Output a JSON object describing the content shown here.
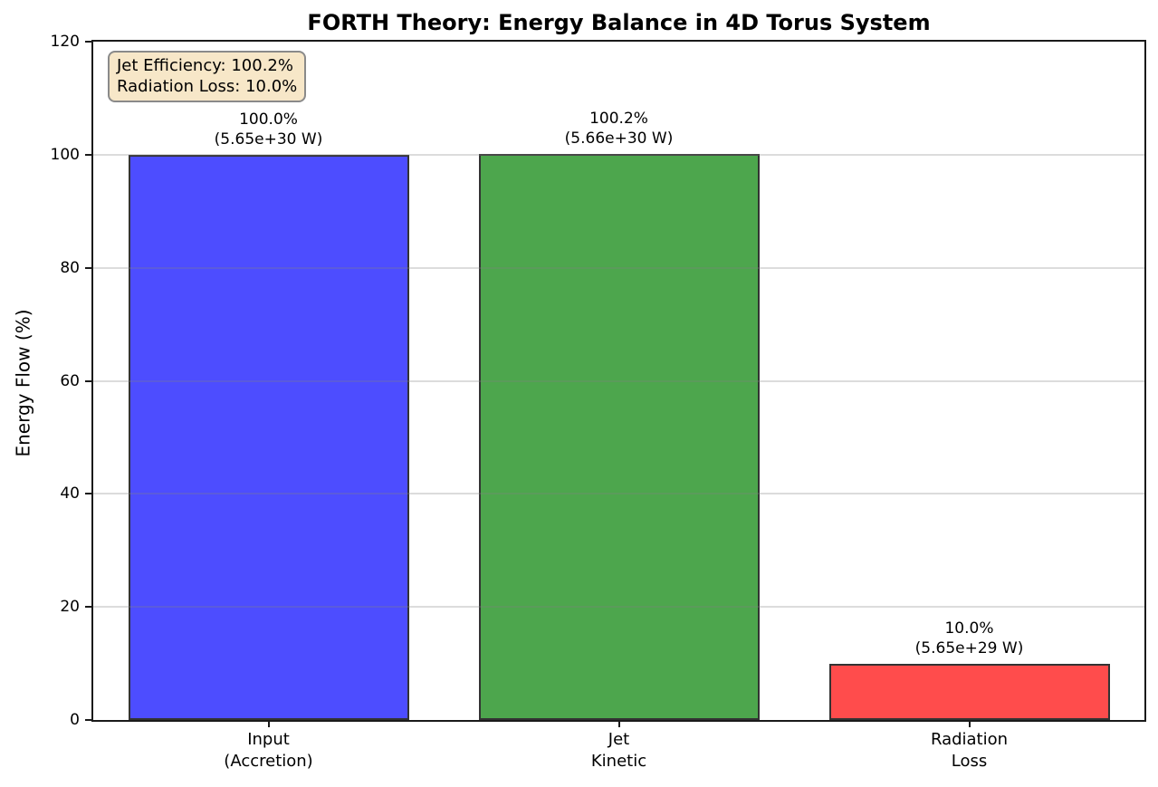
{
  "chart_data": {
    "type": "bar",
    "title": "FORTH Theory: Energy Balance in 4D Torus System",
    "xlabel": "",
    "ylabel": "Energy Flow (%)",
    "categories": [
      "Input\n(Accretion)",
      "Jet\nKinetic",
      "Radiation\nLoss"
    ],
    "values": [
      100.0,
      100.2,
      10.0
    ],
    "bar_labels": [
      "100.0%\n(5.65e+30 W)",
      "100.2%\n(5.66e+30 W)",
      "10.0%\n(5.65e+29 W)"
    ],
    "bar_colors": [
      "#4d4dff",
      "#4da64d",
      "#ff4c4c"
    ],
    "bar_edge_color": "#333333",
    "ylim": [
      0,
      120
    ],
    "yticks": [
      0,
      20,
      40,
      60,
      80,
      100,
      120
    ],
    "grid": "horizontal",
    "legend": "none",
    "annotation": {
      "lines": [
        "Jet Efficiency: 100.2%",
        "Radiation Loss: 10.0%"
      ],
      "bg_color": "#f7e7c8",
      "border_color": "#8a8a8a"
    }
  }
}
